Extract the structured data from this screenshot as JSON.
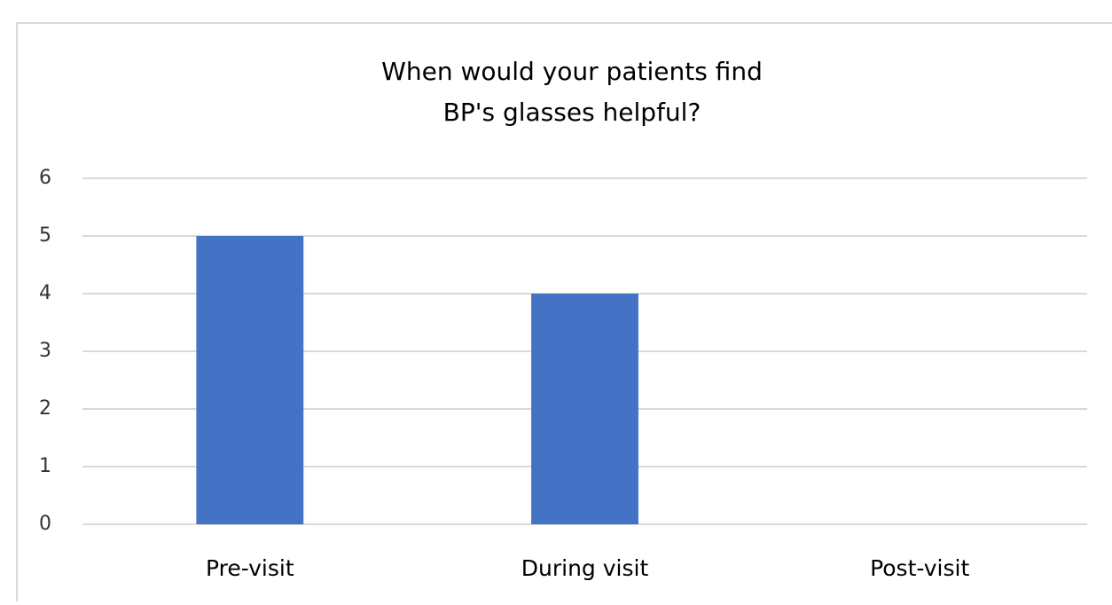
{
  "chart_data": {
    "type": "bar",
    "title": [
      "When would your patients find",
      "BP's glasses helpful?"
    ],
    "categories": [
      "Pre-visit",
      "During visit",
      "Post-visit"
    ],
    "values": [
      5,
      4,
      0
    ],
    "color": "#4472c4",
    "ylim": [
      0,
      6
    ],
    "yticks": [
      0,
      1,
      2,
      3,
      4,
      5,
      6
    ],
    "grid": true
  }
}
